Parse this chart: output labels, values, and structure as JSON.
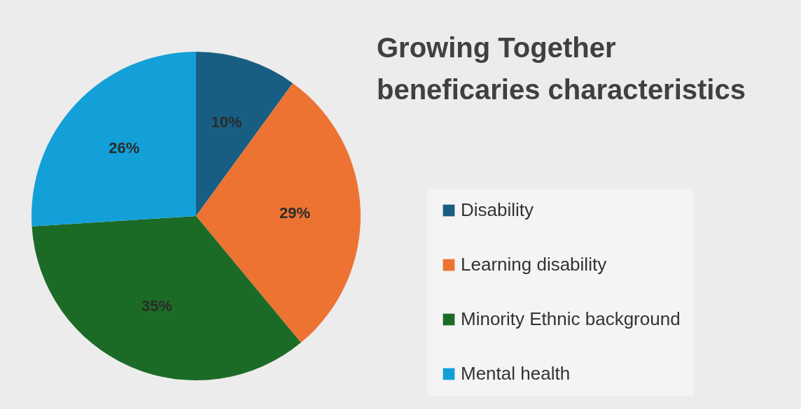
{
  "chart_data": {
    "type": "pie",
    "title": "Growing Together beneficaries characteristics",
    "categories": [
      "Disability",
      "Learning disability",
      "Minority Ethnic background",
      "Mental health"
    ],
    "values": [
      10,
      29,
      35,
      26
    ],
    "colors": [
      "#175e82",
      "#ec7332",
      "#1b6b27",
      "#13a0d8"
    ],
    "value_labels": [
      "10%",
      "29%",
      "35%",
      "26%"
    ],
    "legend": "right"
  }
}
